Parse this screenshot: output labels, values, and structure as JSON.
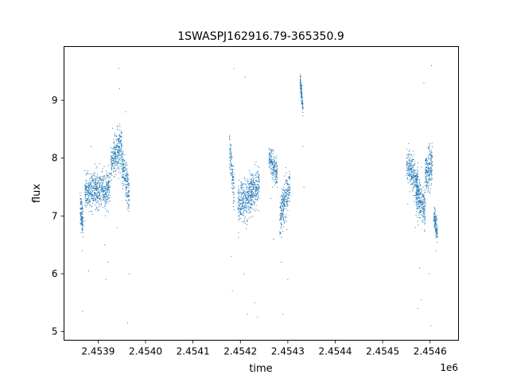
{
  "chart_data": {
    "type": "scatter",
    "title": "1SWASPJ162916.79-365350.9",
    "xlabel": "time",
    "ylabel": "flux",
    "x_offset_label": "1e6",
    "xlim": [
      2.453828,
      2.45466
    ],
    "ylim": [
      4.85,
      9.93
    ],
    "x_ticks": [
      2.4539,
      2.454,
      2.4541,
      2.4542,
      2.4543,
      2.4544,
      2.4545,
      2.4546
    ],
    "x_tick_labels": [
      "2.4539",
      "2.4540",
      "2.4541",
      "2.4542",
      "2.4543",
      "2.4544",
      "2.4545",
      "2.4546"
    ],
    "y_ticks": [
      5,
      6,
      7,
      8,
      9
    ],
    "y_tick_labels": [
      "5",
      "6",
      "7",
      "8",
      "9"
    ],
    "grid": false,
    "marker_color": "#1f77b4",
    "segments": [
      {
        "x0": 2.453862,
        "x1": 2.453868,
        "y0": 7.1,
        "y1": 6.95,
        "spread": 0.28,
        "n": 120,
        "outliers": [
          [
            2.453866,
            6.4
          ],
          [
            2.453867,
            5.35
          ]
        ]
      },
      {
        "x0": 2.453872,
        "x1": 2.4539,
        "y0": 7.4,
        "y1": 7.45,
        "spread": 0.28,
        "n": 320,
        "outliers": [
          [
            2.45388,
            6.05
          ],
          [
            2.453885,
            8.2
          ],
          [
            2.453893,
            7.9
          ]
        ]
      },
      {
        "x0": 2.4539,
        "x1": 2.453925,
        "y0": 7.4,
        "y1": 7.5,
        "spread": 0.32,
        "n": 260,
        "outliers": [
          [
            2.453916,
            5.9
          ],
          [
            2.453914,
            6.5
          ],
          [
            2.45392,
            6.2
          ]
        ]
      },
      {
        "x0": 2.453926,
        "x1": 2.45395,
        "y0": 7.9,
        "y1": 8.25,
        "spread": 0.35,
        "n": 300,
        "outliers": [
          [
            2.453943,
            9.55
          ],
          [
            2.453945,
            9.2
          ],
          [
            2.45394,
            6.8
          ]
        ]
      },
      {
        "x0": 2.45395,
        "x1": 2.453966,
        "y0": 7.9,
        "y1": 7.3,
        "spread": 0.35,
        "n": 200,
        "outliers": [
          [
            2.453962,
            5.15
          ],
          [
            2.453958,
            8.8
          ],
          [
            2.453965,
            6.0
          ]
        ]
      },
      {
        "x0": 2.454177,
        "x1": 2.454187,
        "y0": 8.2,
        "y1": 7.4,
        "spread": 0.3,
        "n": 120,
        "outliers": [
          [
            2.454183,
            5.7
          ],
          [
            2.454181,
            6.3
          ],
          [
            2.454186,
            9.55
          ]
        ]
      },
      {
        "x0": 2.454195,
        "x1": 2.454222,
        "y0": 7.2,
        "y1": 7.35,
        "spread": 0.35,
        "n": 320,
        "outliers": [
          [
            2.454208,
            6.0
          ],
          [
            2.454215,
            5.3
          ],
          [
            2.45421,
            9.4
          ]
        ]
      },
      {
        "x0": 2.454222,
        "x1": 2.45424,
        "y0": 7.4,
        "y1": 7.5,
        "spread": 0.35,
        "n": 220,
        "outliers": [
          [
            2.45423,
            5.5
          ],
          [
            2.454236,
            5.25
          ]
        ]
      },
      {
        "x0": 2.45426,
        "x1": 2.454278,
        "y0": 8.0,
        "y1": 7.7,
        "spread": 0.25,
        "n": 200,
        "outliers": [
          [
            2.45427,
            6.6
          ],
          [
            2.454264,
            7.3
          ]
        ]
      },
      {
        "x0": 2.454283,
        "x1": 2.454305,
        "y0": 7.0,
        "y1": 7.5,
        "spread": 0.35,
        "n": 260,
        "outliers": [
          [
            2.45429,
            5.3
          ],
          [
            2.4543,
            5.9
          ],
          [
            2.454286,
            6.2
          ]
        ]
      },
      {
        "x0": 2.454326,
        "x1": 2.454332,
        "y0": 9.35,
        "y1": 8.9,
        "spread": 0.15,
        "n": 120,
        "outliers": [
          [
            2.454334,
            7.5
          ],
          [
            2.454332,
            8.2
          ]
        ]
      },
      {
        "x0": 2.45455,
        "x1": 2.454575,
        "y0": 7.9,
        "y1": 7.6,
        "spread": 0.3,
        "n": 260,
        "outliers": [
          [
            2.454553,
            7.2
          ],
          [
            2.454569,
            6.8
          ]
        ]
      },
      {
        "x0": 2.45457,
        "x1": 2.45459,
        "y0": 7.4,
        "y1": 7.1,
        "spread": 0.35,
        "n": 280,
        "outliers": [
          [
            2.454578,
            6.1
          ],
          [
            2.454582,
            5.55
          ],
          [
            2.454587,
            9.3
          ],
          [
            2.454574,
            5.4
          ]
        ]
      },
      {
        "x0": 2.45459,
        "x1": 2.454605,
        "y0": 7.7,
        "y1": 7.9,
        "spread": 0.35,
        "n": 220,
        "outliers": [
          [
            2.454598,
            6.0
          ],
          [
            2.454603,
            9.6
          ],
          [
            2.454602,
            5.1
          ]
        ]
      },
      {
        "x0": 2.454608,
        "x1": 2.454616,
        "y0": 7.0,
        "y1": 6.7,
        "spread": 0.22,
        "n": 120,
        "outliers": [
          [
            2.454612,
            6.4
          ]
        ]
      }
    ]
  }
}
